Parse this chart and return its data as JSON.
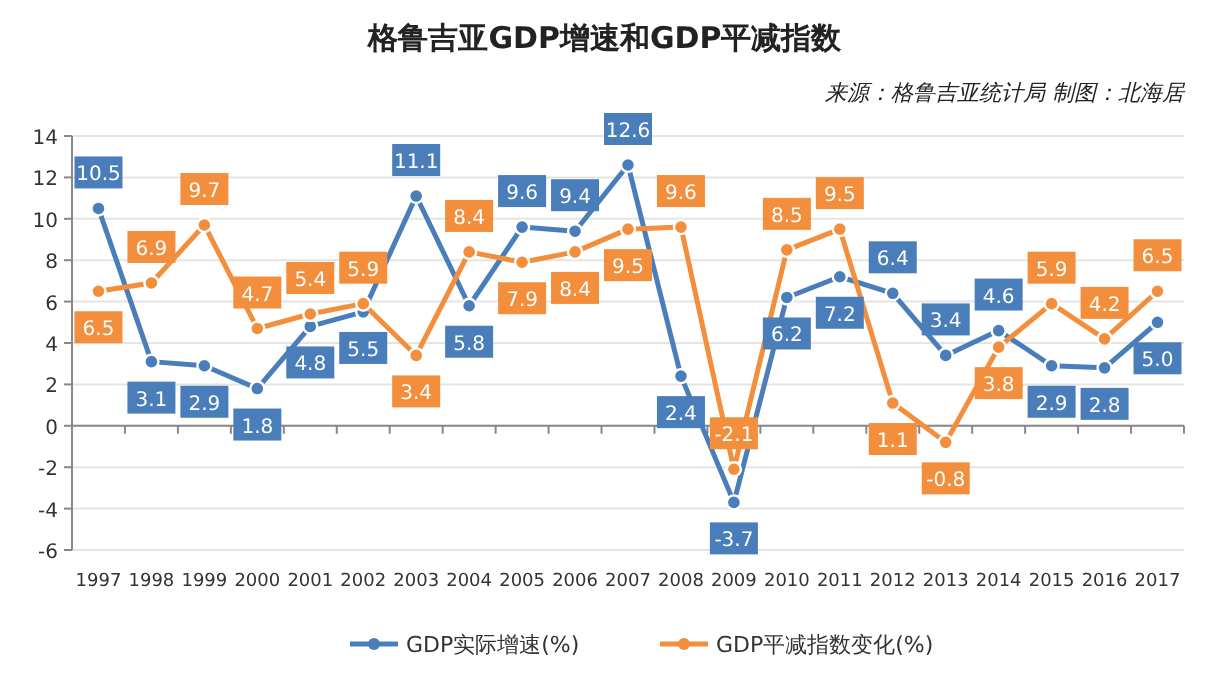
{
  "chart_data": {
    "type": "line",
    "title": "格鲁吉亚GDP增速和GDP平减指数",
    "annotations": [
      "来源：格鲁吉亚统计局  制图：北海居"
    ],
    "categories": [
      "1997",
      "1998",
      "1999",
      "2000",
      "2001",
      "2002",
      "2003",
      "2004",
      "2005",
      "2006",
      "2007",
      "2008",
      "2009",
      "2010",
      "2011",
      "2012",
      "2013",
      "2014",
      "2015",
      "2016",
      "2017"
    ],
    "series": [
      {
        "name": "GDP实际增速(%)",
        "color": "#4a7ebb",
        "values": [
          10.5,
          3.1,
          2.9,
          1.8,
          4.8,
          5.5,
          11.1,
          5.8,
          9.6,
          9.4,
          12.6,
          2.4,
          -3.7,
          6.2,
          7.2,
          6.4,
          3.4,
          4.6,
          2.9,
          2.8,
          5.0
        ],
        "value_labels": [
          "10.5",
          "3.1",
          "2.9",
          "1.8",
          "4.8",
          "5.5",
          "11.1",
          "5.8",
          "9.6",
          "9.4",
          "12.6",
          "2.4",
          "-3.7",
          "6.2",
          "7.2",
          "6.4",
          "3.4",
          "4.6",
          "2.9",
          "2.8",
          "5.0"
        ]
      },
      {
        "name": "GDP平减指数变化(%)",
        "color": "#f28e3c",
        "values": [
          6.5,
          6.9,
          9.7,
          4.7,
          5.4,
          5.9,
          3.4,
          8.4,
          7.9,
          8.4,
          9.5,
          9.6,
          -2.1,
          8.5,
          9.5,
          1.1,
          -0.8,
          3.8,
          5.9,
          4.2,
          6.5
        ],
        "value_labels": [
          "6.5",
          "6.9",
          "9.7",
          "4.7",
          "5.4",
          "5.9",
          "3.4",
          "8.4",
          "7.9",
          "8.4",
          "9.5",
          "9.6",
          "-2.1",
          "8.5",
          "9.5",
          "1.1",
          "-0.8",
          "3.8",
          "5.9",
          "4.2",
          "6.5"
        ]
      }
    ],
    "ylim": [
      -6,
      14
    ],
    "yticks": [
      -6,
      -4,
      -2,
      0,
      2,
      4,
      6,
      8,
      10,
      12,
      14
    ],
    "grid": "y",
    "legend": "bottom",
    "marker": "circle",
    "line_style": "solid"
  }
}
